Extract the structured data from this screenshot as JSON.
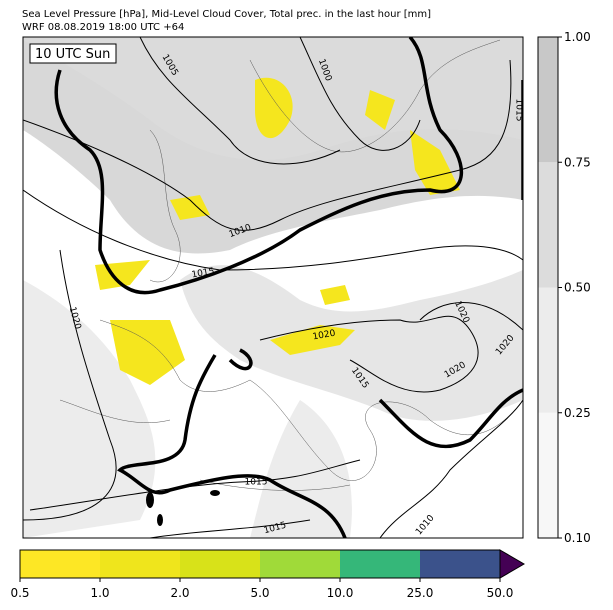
{
  "header": {
    "title_line1": "Sea Level Pressure [hPa], Mid-Level Cloud Cover, Total prec. in the last hour [mm]",
    "title_line2": "WRF 08.08.2019 18:00 UTC +64"
  },
  "map": {
    "time_label": "10 UTC Sun",
    "contour_labels": [
      "1005",
      "1000",
      "1010",
      "1015",
      "1020",
      "1020",
      "1020",
      "1020",
      "1020",
      "1015",
      "1015",
      "1015",
      "1010",
      "1015"
    ]
  },
  "cloud_colorbar": {
    "ticks": [
      {
        "value": 0.1,
        "label": "0.10"
      },
      {
        "value": 0.25,
        "label": "0.25"
      },
      {
        "value": 0.5,
        "label": "0.50"
      },
      {
        "value": 0.75,
        "label": "0.75"
      },
      {
        "value": 1,
        "label": "1.00"
      }
    ],
    "colors": [
      "#f7f7f7",
      "#ececec",
      "#dcdcdc",
      "#c8c8c8"
    ]
  },
  "precip_colorbar": {
    "ticks": [
      0.5,
      {
        "value": 1,
        "label": "1.0"
      },
      {
        "value": 2,
        "label": "2.0"
      },
      {
        "value": 5,
        "label": "5.0"
      },
      {
        "value": 10,
        "label": "10.0"
      },
      {
        "value": 25,
        "label": "25.0"
      },
      {
        "value": 50,
        "label": "50.0"
      }
    ],
    "colors": [
      "#fde725",
      "#efe51c",
      "#d8e219",
      "#a0da39",
      "#35b779",
      "#3b528b"
    ],
    "extend_color": "#440154"
  }
}
